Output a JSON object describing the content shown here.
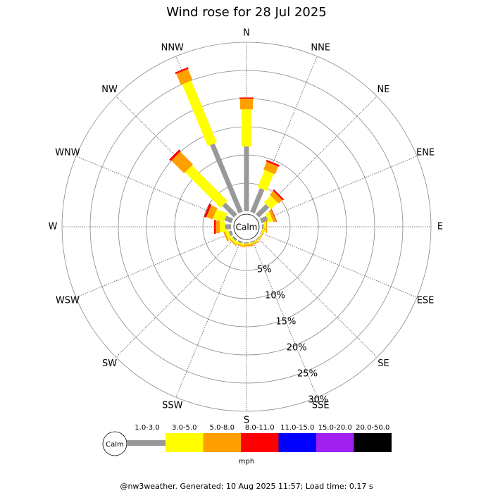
{
  "chart_data": {
    "type": "windrose",
    "title": "Wind rose for 28 Jul 2025",
    "directions": [
      "N",
      "NNE",
      "NE",
      "ENE",
      "E",
      "ESE",
      "SE",
      "SSE",
      "S",
      "SSW",
      "SW",
      "WSW",
      "W",
      "WNW",
      "NW",
      "NNW"
    ],
    "calm_label": "Calm",
    "unit": "mph",
    "rlim": [
      0,
      30
    ],
    "rticks": [
      {
        "value": 5,
        "label": "5%"
      },
      {
        "value": 10,
        "label": "10%"
      },
      {
        "value": 15,
        "label": "15%"
      },
      {
        "value": 20,
        "label": "20%"
      },
      {
        "value": 25,
        "label": "25%"
      },
      {
        "value": 30,
        "label": "30%"
      }
    ],
    "series": [
      {
        "name": "1.0-3.0",
        "color": "#999999",
        "values": [
          11.5,
          4.5,
          2.5,
          1.2,
          0.3,
          0.1,
          0.1,
          0.2,
          0.2,
          0.3,
          0.4,
          0.5,
          1.0,
          1.3,
          2.9,
          13.1
        ]
      },
      {
        "name": "3.0-5.0",
        "color": "#ffff00",
        "values": [
          6.6,
          3.3,
          1.7,
          0.8,
          0.4,
          0.2,
          0.1,
          0.2,
          0.2,
          0.3,
          0.4,
          0.6,
          1.0,
          2.0,
          8.9,
          11.9
        ]
      },
      {
        "name": "5.0-8.0",
        "color": "#ffa000",
        "values": [
          1.9,
          1.5,
          0.9,
          0.5,
          0.2,
          0.1,
          0.1,
          0.2,
          0.3,
          0.2,
          0.2,
          0.3,
          0.7,
          1.2,
          3.2,
          2.1
        ]
      },
      {
        "name": "8.0-11.0",
        "color": "#ff0000",
        "values": [
          0.2,
          0.3,
          0.3,
          0.1,
          0,
          0,
          0,
          0,
          0,
          0,
          0,
          0,
          0.3,
          0.4,
          0.4,
          0.3
        ]
      },
      {
        "name": "11.0-15.0",
        "color": "#0000ff",
        "values": [
          0,
          0,
          0,
          0,
          0,
          0,
          0,
          0,
          0,
          0,
          0,
          0,
          0,
          0,
          0,
          0
        ]
      },
      {
        "name": "15.0-20.0",
        "color": "#a020f0",
        "values": [
          0,
          0,
          0,
          0,
          0,
          0,
          0,
          0,
          0,
          0,
          0,
          0,
          0,
          0,
          0,
          0
        ]
      },
      {
        "name": "20.0-50.0",
        "color": "#000000",
        "values": [
          0,
          0,
          0,
          0,
          0,
          0,
          0,
          0,
          0,
          0,
          0,
          0,
          0,
          0,
          0,
          0
        ]
      }
    ],
    "footer": "@nw3weather.  Generated: 10 Aug 2025 11:57; Load time: 0.17 s"
  }
}
